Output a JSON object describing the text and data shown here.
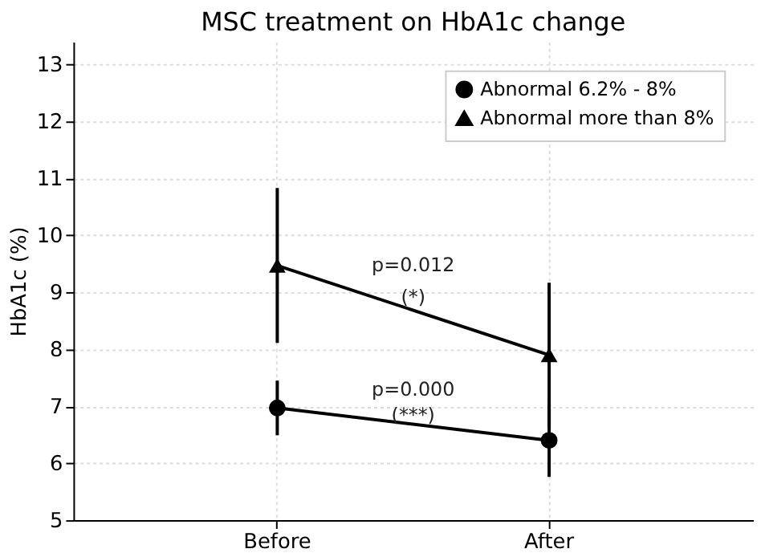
{
  "chart_data": {
    "type": "line",
    "title": "MSC treatment on HbA1c change",
    "ylabel": "HbA1c (%)",
    "categories": [
      "Before",
      "After"
    ],
    "series": [
      {
        "name": "Abnormal 6.2% - 8%",
        "color": "#000000",
        "marker": "circle",
        "values": [
          6.97,
          6.4
        ],
        "errors": [
          0.48,
          0.64
        ]
      },
      {
        "name": "Abnormal more than 8%",
        "color": "#000000",
        "marker": "triangle",
        "values": [
          9.47,
          7.9
        ],
        "errors": [
          1.36,
          1.27
        ]
      }
    ],
    "ylim": [
      5,
      13.4
    ],
    "yticks": [
      5,
      6,
      7,
      8,
      9,
      10,
      11,
      12,
      13
    ],
    "grid": true,
    "legend": "top right",
    "line_style": "solid",
    "annotations": [
      "p=0.012",
      "(*)",
      "p=0.000",
      "(***)"
    ]
  }
}
